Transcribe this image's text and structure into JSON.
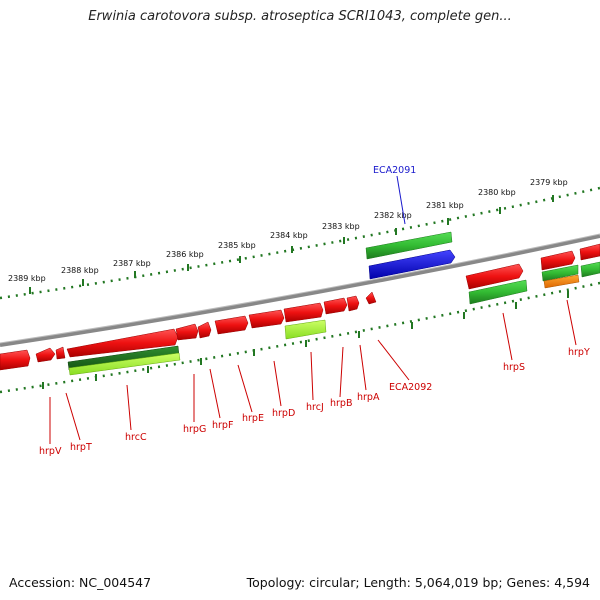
{
  "title": "Erwinia carotovora subsp. atroseptica SCRI1043, complete gen...",
  "footer": {
    "accession": "Accession: NC_004547",
    "topology": "Topology: circular; Length: 5,064,019 bp; Genes: 4,594"
  },
  "colors": {
    "forward_gene": "#ee1111",
    "cds_green": "#33bb33",
    "rna_blue": "#1111dd",
    "pseudo_lime": "#99ee33",
    "orange": "#ff8800",
    "backbone": "#777777",
    "tick": "#227722",
    "label_red": "#cc0000",
    "label_blue": "#1a1acc"
  },
  "kbp_labels": [
    "2379 kbp",
    "2380 kbp",
    "2381 kbp",
    "2382 kbp",
    "2383 kbp",
    "2384 kbp",
    "2385 kbp",
    "2386 kbp",
    "2387 kbp",
    "2388 kbp",
    "2389 kbp"
  ],
  "gene_labels": [
    {
      "text": "ECA2091",
      "color": "blue"
    },
    {
      "text": "ECA2092",
      "color": "red"
    },
    {
      "text": "hrpS",
      "color": "red"
    },
    {
      "text": "hrpY",
      "color": "red"
    },
    {
      "text": "hrpA",
      "color": "red"
    },
    {
      "text": "hrcJ",
      "color": "red"
    },
    {
      "text": "hrpB",
      "color": "red"
    },
    {
      "text": "hrpD",
      "color": "red"
    },
    {
      "text": "hrpE",
      "color": "red"
    },
    {
      "text": "hrpF",
      "color": "red"
    },
    {
      "text": "hrpG",
      "color": "red"
    },
    {
      "text": "hrcC",
      "color": "red"
    },
    {
      "text": "hrpT",
      "color": "red"
    },
    {
      "text": "hrpV",
      "color": "red"
    }
  ]
}
